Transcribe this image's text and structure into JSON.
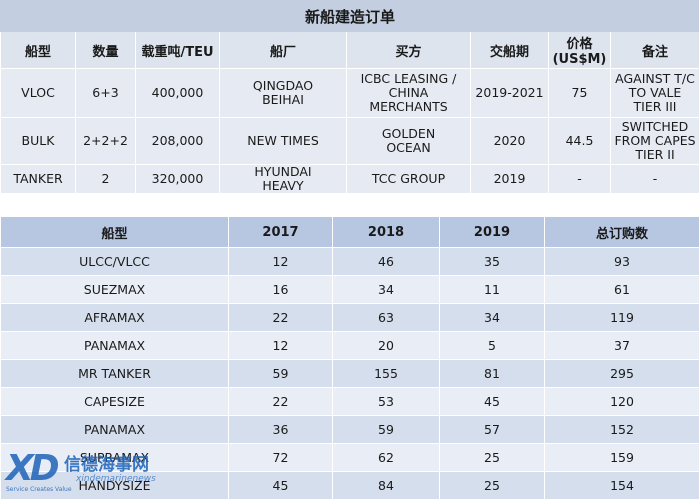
{
  "orders_table": {
    "title": "新船建造订单",
    "headers": [
      "船型",
      "数量",
      "载重吨/TEU",
      "船厂",
      "买方",
      "交船期",
      "价格\n(US$M)",
      "备注"
    ],
    "rows": [
      [
        "VLOC",
        "6+3",
        "400,000",
        "QINGDAO\nBEIHAI",
        "ICBC LEASING /\nCHINA\nMERCHANTS",
        "2019-2021",
        "75",
        "AGAINST T/C\nTO VALE\nTIER III"
      ],
      [
        "BULK",
        "2+2+2",
        "208,000",
        "NEW TIMES",
        "GOLDEN\nOCEAN",
        "2020",
        "44.5",
        "SWITCHED\nFROM CAPES\nTIER II"
      ],
      [
        "TANKER",
        "2",
        "320,000",
        "HYUNDAI\nHEAVY",
        "TCC GROUP",
        "2019",
        "-",
        "-"
      ]
    ]
  },
  "counts_table": {
    "headers": [
      "船型",
      "2017",
      "2018",
      "2019",
      "总订购数"
    ],
    "rows": [
      [
        "ULCC/VLCC",
        "12",
        "46",
        "35",
        "93"
      ],
      [
        "SUEZMAX",
        "16",
        "34",
        "11",
        "61"
      ],
      [
        "AFRAMAX",
        "22",
        "63",
        "34",
        "119"
      ],
      [
        "PANAMAX",
        "12",
        "20",
        "5",
        "37"
      ],
      [
        "MR TANKER",
        "59",
        "155",
        "81",
        "295"
      ],
      [
        "CAPESIZE",
        "22",
        "53",
        "45",
        "120"
      ],
      [
        "PANAMAX",
        "36",
        "59",
        "57",
        "152"
      ],
      [
        "SUPRAMAX",
        "72",
        "62",
        "25",
        "159"
      ],
      [
        "HANDYSIZE",
        "45",
        "84",
        "25",
        "154"
      ]
    ]
  },
  "watermark": {
    "logo": "XD",
    "chinese": "信德海事网",
    "tagline": "Service Creates Value",
    "news": "xindemarinenews"
  },
  "colors": {
    "title_bg": "#c3cfe0",
    "orders_header_bg": "#dde4ee",
    "orders_body_bg": "#e6ebf3",
    "counts_header_bg": "#b7c7e2",
    "counts_row_dark": "#d5deed",
    "counts_row_light": "#e9eef6",
    "watermark": "#1e63b8"
  }
}
